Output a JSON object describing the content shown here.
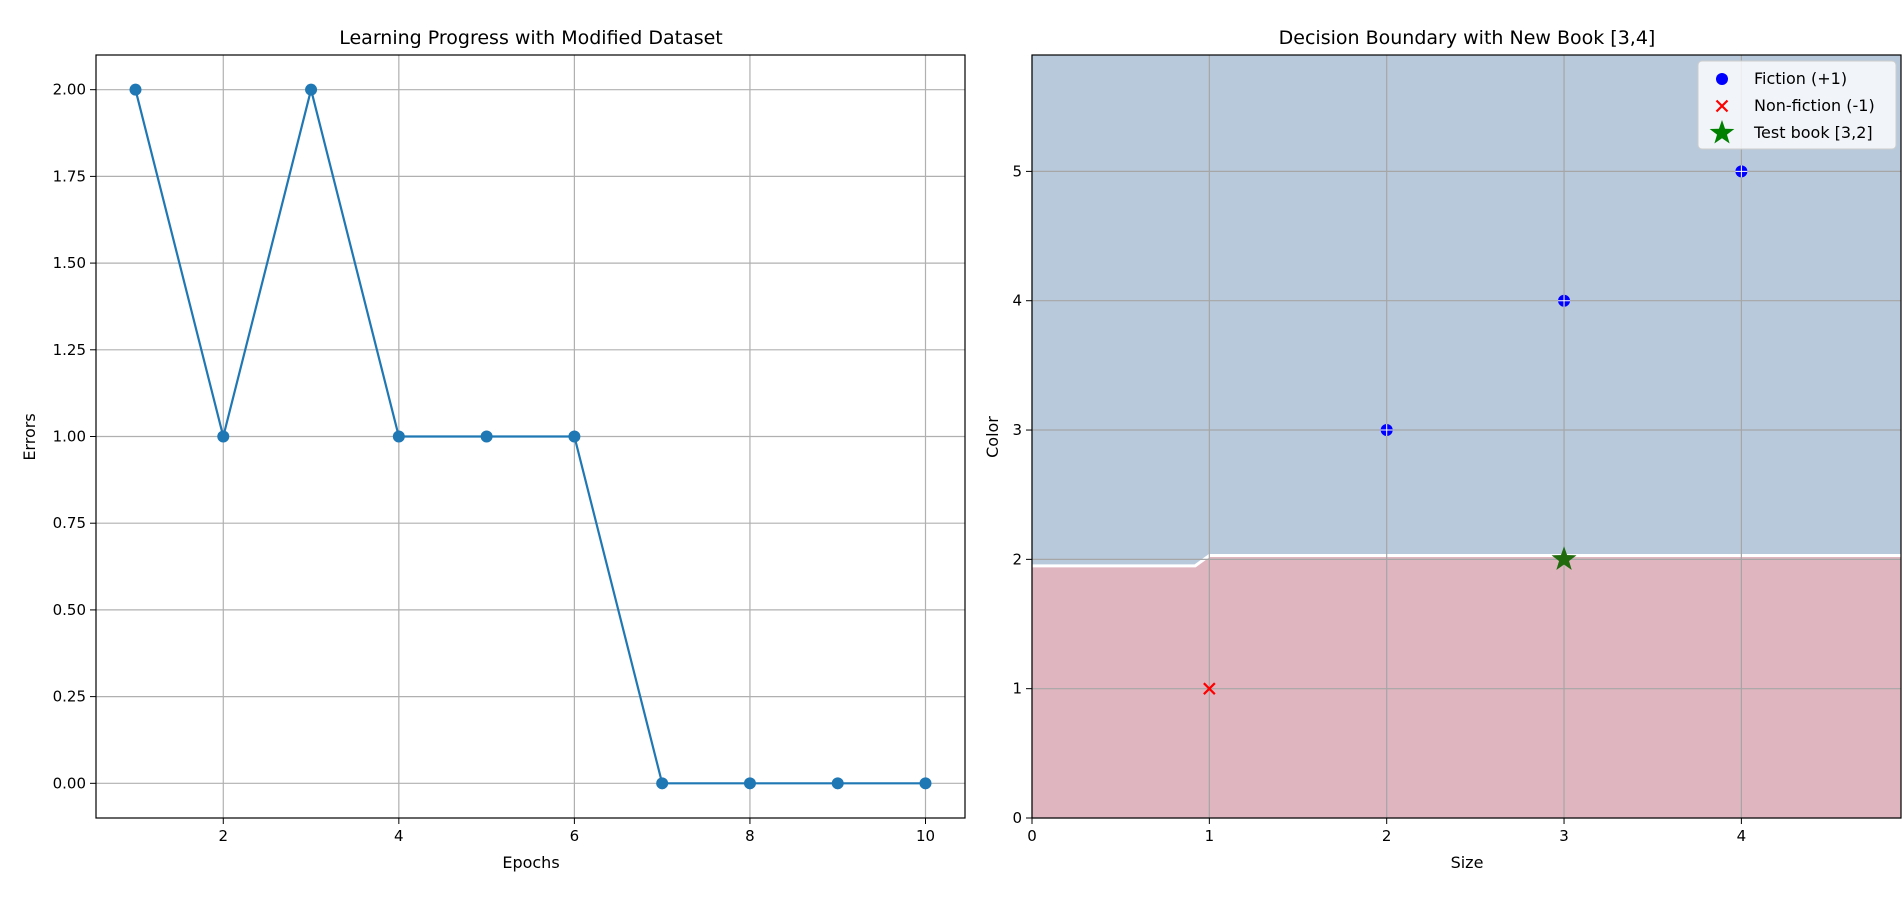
{
  "chart_data": [
    {
      "type": "line",
      "title": "Learning Progress with Modified Dataset",
      "xlabel": "Epochs",
      "ylabel": "Errors",
      "x": [
        1,
        2,
        3,
        4,
        5,
        6,
        7,
        8,
        9,
        10
      ],
      "y": [
        2,
        1,
        2,
        1,
        1,
        1,
        0,
        0,
        0,
        0
      ],
      "xlim": [
        0.55,
        10.45
      ],
      "ylim": [
        -0.1,
        2.1
      ],
      "xticks": [
        2,
        4,
        6,
        8,
        10
      ],
      "xtick_labels": [
        "2",
        "4",
        "6",
        "8",
        "10"
      ],
      "yticks": [
        0,
        0.25,
        0.5,
        0.75,
        1.0,
        1.25,
        1.5,
        1.75,
        2.0
      ],
      "ytick_labels": [
        "0.00",
        "0.25",
        "0.50",
        "0.75",
        "1.00",
        "1.25",
        "1.50",
        "1.75",
        "2.00"
      ],
      "grid": true,
      "line_color": "#1f77b4"
    },
    {
      "type": "scatter",
      "title": "Decision Boundary with New Book [3,4]",
      "xlabel": "Size",
      "ylabel": "Color",
      "xlim": [
        0,
        4.9
      ],
      "ylim": [
        0,
        5.9
      ],
      "xticks": [
        0,
        1,
        2,
        3,
        4
      ],
      "xtick_labels": [
        "0",
        "1",
        "2",
        "3",
        "4"
      ],
      "yticks": [
        0,
        1,
        2,
        3,
        4,
        5
      ],
      "ytick_labels": [
        "0",
        "1",
        "2",
        "3",
        "4",
        "5"
      ],
      "grid": true,
      "legend_position": "top-right",
      "regions": {
        "upper_color": "#b9c9dc",
        "lower_color": "#dfb5bf",
        "boundary": [
          [
            0,
            1.95
          ],
          [
            0.92,
            1.95
          ],
          [
            1.0,
            2.03
          ],
          [
            4.9,
            2.03
          ]
        ]
      },
      "series": [
        {
          "name": "Fiction (+1)",
          "marker": "circle",
          "color": "#0000ff",
          "points": [
            [
              2,
              3
            ],
            [
              3,
              4
            ],
            [
              4,
              5
            ]
          ]
        },
        {
          "name": "Non-fiction (-1)",
          "marker": "x",
          "color": "#ff0000",
          "points": [
            [
              1,
              1
            ]
          ]
        },
        {
          "name": "Test book [3,2]",
          "marker": "star",
          "color": "#008000",
          "points": [
            [
              3,
              2
            ]
          ]
        }
      ]
    }
  ]
}
